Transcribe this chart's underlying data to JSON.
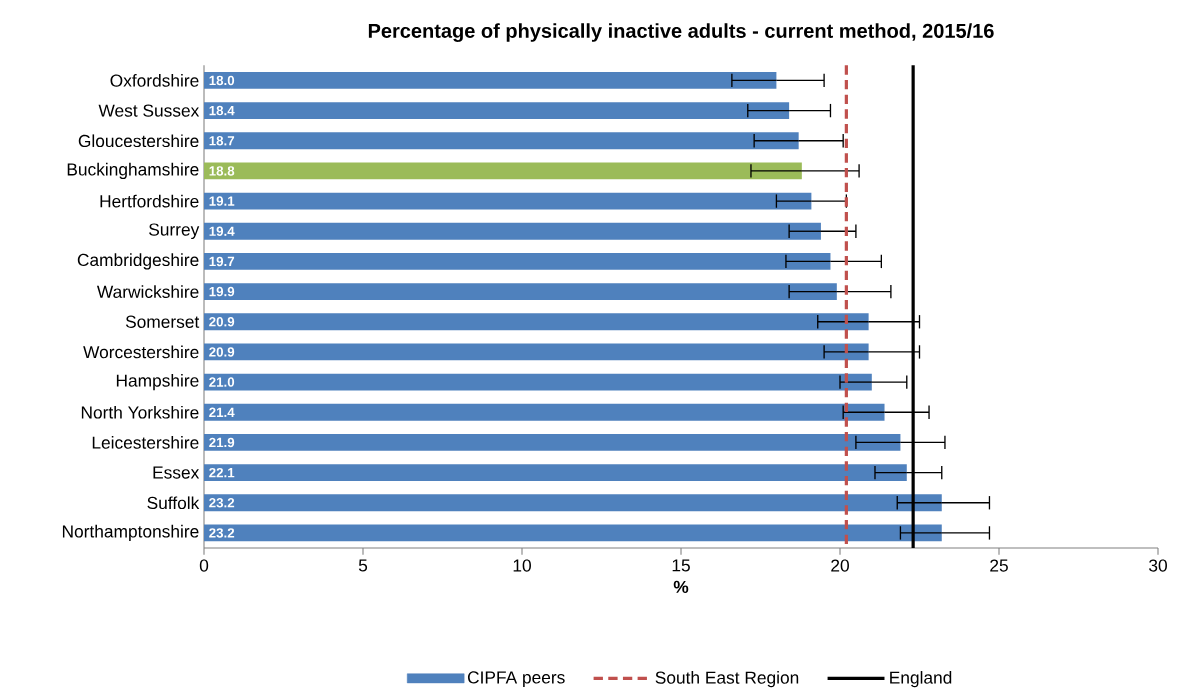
{
  "chart_data": {
    "type": "bar",
    "orientation": "horizontal",
    "title": "Percentage of physically inactive adults - current method, 2015/16",
    "xlabel": "%",
    "categories": [
      "Oxfordshire",
      "West Sussex",
      "Gloucestershire",
      "Buckinghamshire",
      "Hertfordshire",
      "Surrey",
      "Cambridgeshire",
      "Warwickshire",
      "Somerset",
      "Worcestershire",
      "Hampshire",
      "North Yorkshire",
      "Leicestershire",
      "Essex",
      "Suffolk",
      "Northamptonshire"
    ],
    "series": [
      {
        "name": "CIPFA peers",
        "color": "#4f81bd",
        "colors": [
          "#4f81bd",
          "#4f81bd",
          "#4f81bd",
          "#9bbb59",
          "#4f81bd",
          "#4f81bd",
          "#4f81bd",
          "#4f81bd",
          "#4f81bd",
          "#4f81bd",
          "#4f81bd",
          "#4f81bd",
          "#4f81bd",
          "#4f81bd",
          "#4f81bd",
          "#4f81bd"
        ],
        "values": [
          18.0,
          18.4,
          18.7,
          18.8,
          19.1,
          19.4,
          19.7,
          19.9,
          20.9,
          20.9,
          21.0,
          21.4,
          21.9,
          22.1,
          23.2,
          23.2
        ],
        "value_labels": [
          "18.0",
          "18.4",
          "18.7",
          "18.8",
          "19.1",
          "19.4",
          "19.7",
          "19.9",
          "20.9",
          "20.9",
          "21.0",
          "21.4",
          "21.9",
          "22.1",
          "23.2",
          "23.2"
        ],
        "errors": [
          [
            16.6,
            19.5
          ],
          [
            17.1,
            19.7
          ],
          [
            17.3,
            20.1
          ],
          [
            17.2,
            20.6
          ],
          [
            18.0,
            20.2
          ],
          [
            18.4,
            20.5
          ],
          [
            18.3,
            21.3
          ],
          [
            18.4,
            21.6
          ],
          [
            19.3,
            22.5
          ],
          [
            19.5,
            22.5
          ],
          [
            20.0,
            22.1
          ],
          [
            20.1,
            22.8
          ],
          [
            20.5,
            23.3
          ],
          [
            21.1,
            23.2
          ],
          [
            21.8,
            24.7
          ],
          [
            21.9,
            24.7
          ]
        ]
      }
    ],
    "ref_lines": [
      {
        "axis": "x",
        "value": 20.2,
        "label": "South East Region",
        "color": "#c0504d",
        "line_style": "dashed"
      },
      {
        "axis": "x",
        "value": 22.3,
        "label": "England",
        "color": "#000000",
        "line_style": "solid"
      }
    ],
    "xlim": [
      0,
      30
    ],
    "xticks": [
      0,
      5,
      10,
      15,
      20,
      25,
      30
    ],
    "grid": false,
    "legend": "bottom"
  }
}
